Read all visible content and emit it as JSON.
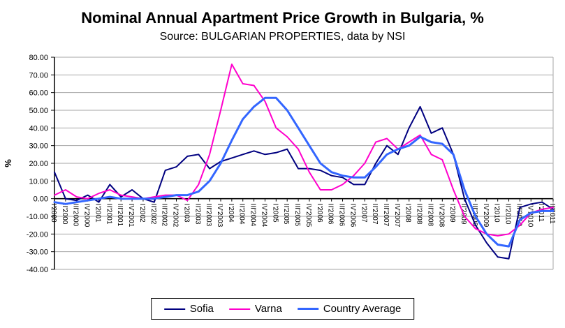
{
  "chart_data": {
    "type": "line",
    "title": "Nominal Annual Apartment Price Growth in Bulgaria, %",
    "subtitle": "Source: BULGARIAN PROPERTIES, data by NSI",
    "xlabel": "",
    "ylabel": "%",
    "ylim": [
      -40,
      80
    ],
    "ytick_step": 10,
    "ytick_labels": [
      "80.00",
      "70.00",
      "60.00",
      "50.00",
      "40.00",
      "30.00",
      "20.00",
      "10.00",
      "0.00",
      "-10.00",
      "-20.00",
      "-30.00",
      "-40.00"
    ],
    "grid": true,
    "legend_position": "bottom",
    "categories": [
      "I'2000",
      "II'2000",
      "III'2000",
      "IV'2000",
      "I'2001",
      "II'2001",
      "III'2001",
      "IV'2001",
      "I'2002",
      "II'2002",
      "III'2002",
      "IV'2002",
      "I'2003",
      "II'2003",
      "III'2003",
      "IV'2003",
      "I'2004",
      "II'2004",
      "III'2004",
      "IV'2004",
      "I'2005",
      "II'2005",
      "III'2005",
      "IV'2005",
      "I'2006",
      "II'2006",
      "III'2006",
      "IV'2006",
      "I'2007",
      "II'2007",
      "III'2007",
      "IV'2007",
      "I'2008",
      "II'2008",
      "III'2008",
      "IV'2008",
      "I'2009",
      "II'2009",
      "III'2009",
      "IV'2009",
      "I'2010",
      "II'2010",
      "III'2010",
      "IV'2010",
      "I'2011",
      "II'2011"
    ],
    "series": [
      {
        "name": "Sofia",
        "color": "#000080",
        "stroke_width": 2,
        "values": [
          15,
          0,
          -1,
          2,
          -2,
          8,
          1,
          5,
          0,
          -2,
          16,
          18,
          24,
          25,
          17,
          21,
          23,
          25,
          27,
          25,
          26,
          28,
          17,
          17,
          16,
          13,
          12,
          8,
          8,
          20,
          30,
          25,
          40,
          52,
          37,
          40,
          25,
          0,
          -15,
          -25,
          -33,
          -34,
          -5,
          -3,
          -2,
          -6
        ]
      },
      {
        "name": "Varna",
        "color": "#FF00CC",
        "stroke_width": 2,
        "values": [
          2,
          5,
          1,
          0,
          3,
          5,
          2,
          1,
          0,
          1,
          2,
          2,
          -1,
          8,
          25,
          50,
          76,
          65,
          64,
          55,
          40,
          35,
          28,
          15,
          5,
          5,
          8,
          13,
          20,
          32,
          34,
          28,
          32,
          36,
          25,
          22,
          5,
          -10,
          -17,
          -20,
          -21,
          -20,
          -15,
          -8,
          -6,
          -5
        ]
      },
      {
        "name": "Country Average",
        "color": "#3366FF",
        "stroke_width": 3,
        "values": [
          -2,
          -3,
          -2,
          -1,
          0,
          1,
          0,
          0,
          0,
          0,
          1,
          2,
          2,
          4,
          10,
          20,
          33,
          45,
          52,
          57,
          57,
          50,
          40,
          30,
          20,
          15,
          13,
          12,
          12,
          18,
          25,
          28,
          30,
          35,
          32,
          31,
          25,
          5,
          -10,
          -20,
          -26,
          -27,
          -12,
          -8,
          -7,
          -7
        ]
      }
    ]
  }
}
